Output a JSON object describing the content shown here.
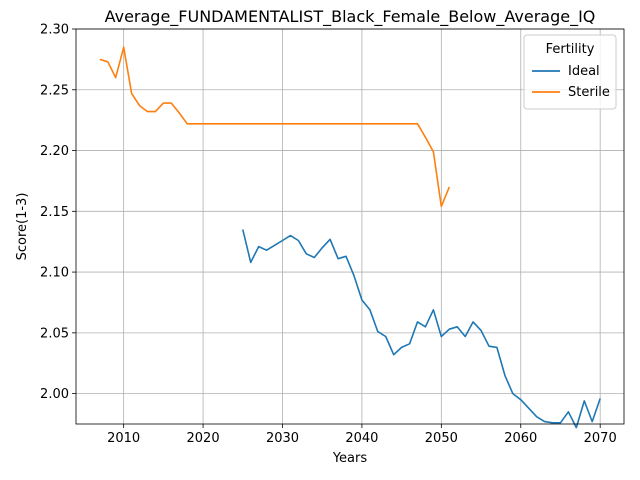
{
  "chart_data": {
    "type": "line",
    "title": "Average_FUNDAMENTALIST_Black_Female_Below_Average_IQ",
    "xlabel": "Years",
    "ylabel": "Score(1-3)",
    "xlim": [
      2004,
      2073
    ],
    "ylim": [
      1.975,
      2.3
    ],
    "xticks": [
      2010,
      2020,
      2030,
      2040,
      2050,
      2060,
      2070
    ],
    "yticks": [
      2.0,
      2.05,
      2.1,
      2.15,
      2.2,
      2.25,
      2.3
    ],
    "grid": true,
    "legend": {
      "title": "Fertility",
      "placement": "top-right"
    },
    "series": [
      {
        "name": "Ideal",
        "color": "#1f77b4",
        "x": [
          2025,
          2026,
          2027,
          2028,
          2029,
          2030,
          2031,
          2032,
          2033,
          2034,
          2035,
          2036,
          2037,
          2038,
          2039,
          2040,
          2041,
          2042,
          2043,
          2044,
          2045,
          2046,
          2047,
          2048,
          2049,
          2050,
          2051,
          2052,
          2053,
          2054,
          2055,
          2056,
          2057,
          2058,
          2059,
          2060,
          2061,
          2062,
          2063,
          2064,
          2065,
          2066,
          2067,
          2068,
          2069,
          2070
        ],
        "y": [
          2.135,
          2.108,
          2.121,
          2.118,
          2.122,
          2.126,
          2.13,
          2.126,
          2.115,
          2.112,
          2.12,
          2.127,
          2.111,
          2.113,
          2.097,
          2.077,
          2.069,
          2.051,
          2.047,
          2.032,
          2.038,
          2.041,
          2.059,
          2.055,
          2.069,
          2.047,
          2.053,
          2.055,
          2.047,
          2.059,
          2.052,
          2.039,
          2.038,
          2.015,
          2.0,
          1.995,
          1.988,
          1.981,
          1.977,
          1.976,
          1.976,
          1.985,
          1.972,
          1.994,
          1.977,
          1.996
        ]
      },
      {
        "name": "Sterile",
        "color": "#ff7f0e",
        "x": [
          2007,
          2008,
          2009,
          2010,
          2011,
          2012,
          2013,
          2014,
          2015,
          2016,
          2017,
          2018,
          2019,
          2020,
          2021,
          2022,
          2023,
          2024,
          2025,
          2026,
          2027,
          2028,
          2029,
          2030,
          2031,
          2032,
          2033,
          2034,
          2035,
          2036,
          2037,
          2038,
          2039,
          2040,
          2041,
          2042,
          2043,
          2044,
          2045,
          2046,
          2047,
          2048,
          2049,
          2050,
          2051
        ],
        "y": [
          2.275,
          2.273,
          2.26,
          2.285,
          2.247,
          2.237,
          2.232,
          2.232,
          2.239,
          2.239,
          2.231,
          2.222,
          2.222,
          2.222,
          2.222,
          2.222,
          2.222,
          2.222,
          2.222,
          2.222,
          2.222,
          2.222,
          2.222,
          2.222,
          2.222,
          2.222,
          2.222,
          2.222,
          2.222,
          2.222,
          2.222,
          2.222,
          2.222,
          2.222,
          2.222,
          2.222,
          2.222,
          2.222,
          2.222,
          2.222,
          2.222,
          2.211,
          2.199,
          2.154,
          2.17
        ]
      }
    ]
  }
}
